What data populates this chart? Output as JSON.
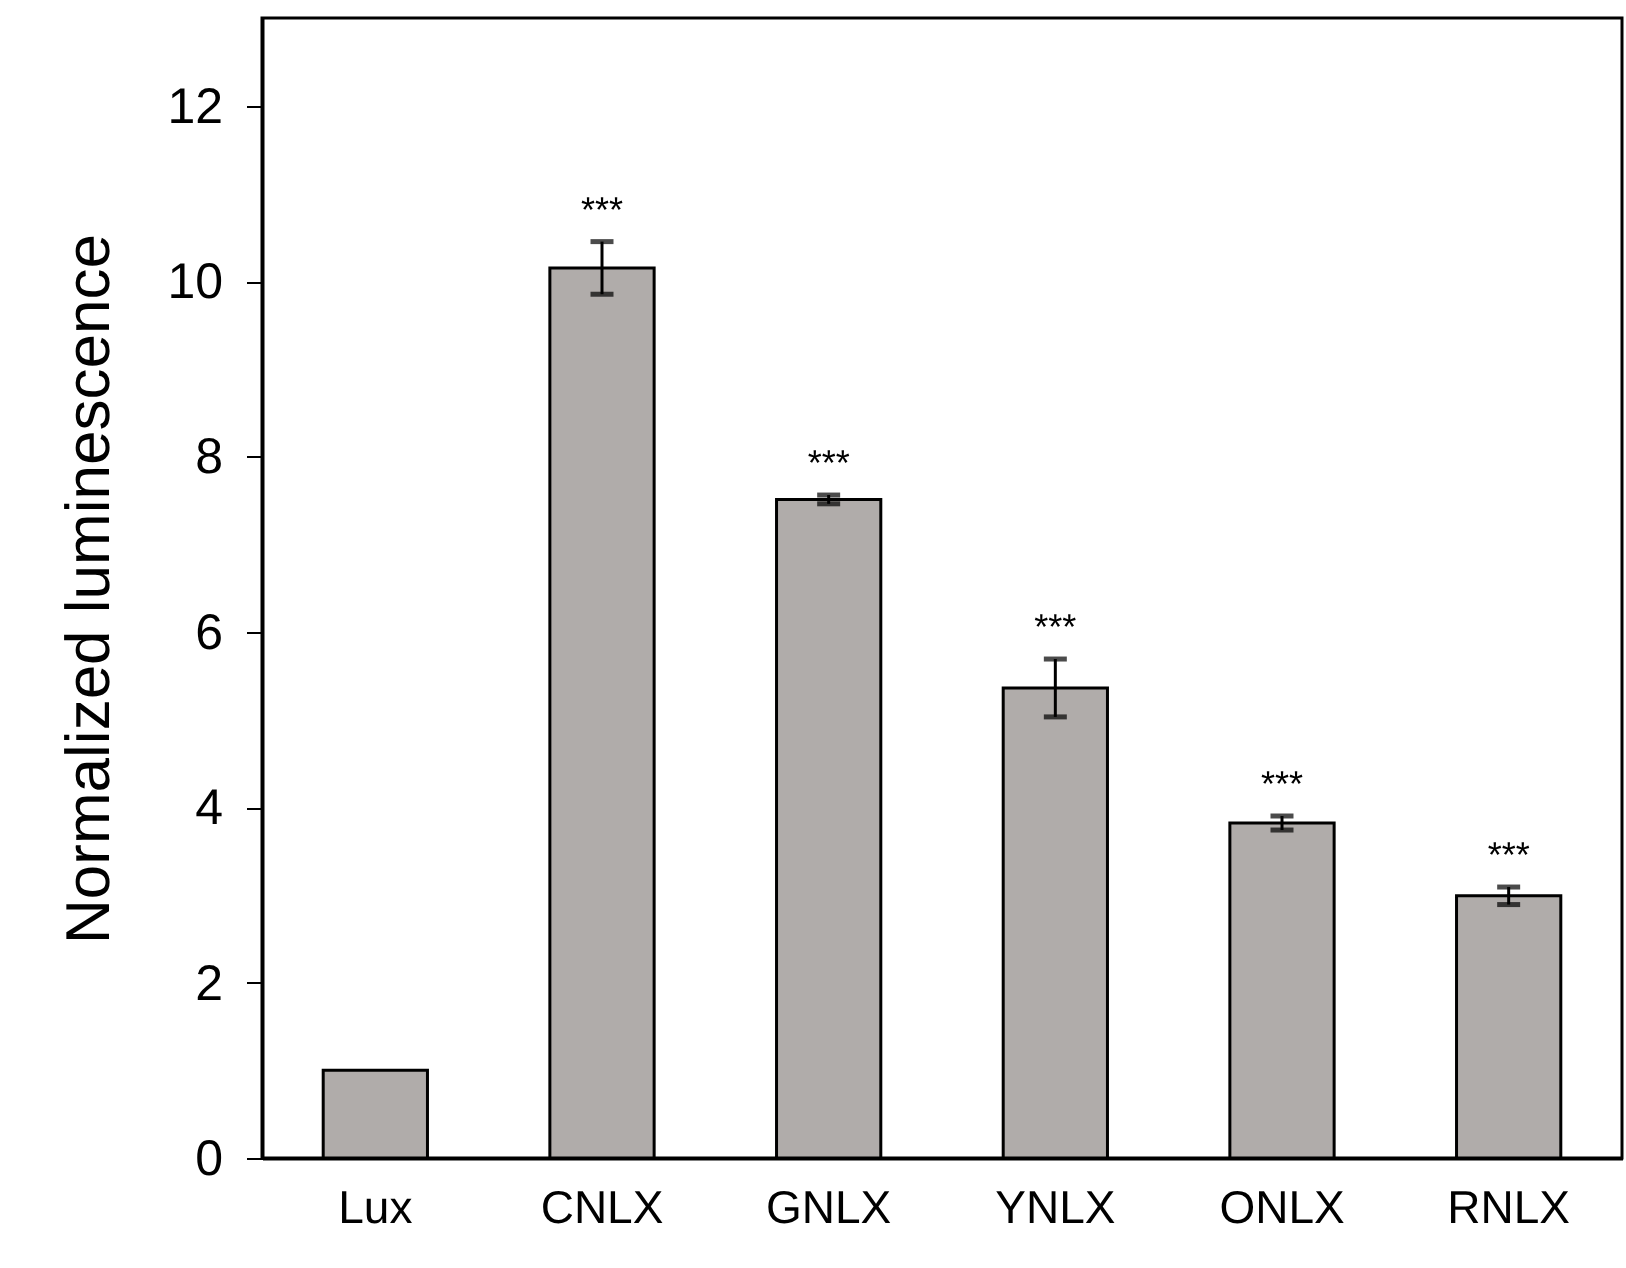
{
  "chart_data": {
    "type": "bar",
    "ylabel": "Normalized luminescence",
    "categories": [
      "Lux",
      "CNLX",
      "GNLX",
      "YNLX",
      "ONLX",
      "RNLX"
    ],
    "values": [
      1.0,
      10.15,
      7.51,
      5.36,
      3.82,
      2.99
    ],
    "errors": [
      null,
      0.3,
      0.05,
      0.33,
      0.08,
      0.1
    ],
    "color": "#b0acaa",
    "ylim": [
      0,
      13
    ],
    "yticks": [
      0,
      2,
      4,
      6,
      8,
      10,
      12
    ],
    "grid": false,
    "annotations": [
      "***",
      "***",
      "***",
      "***",
      "***"
    ]
  }
}
